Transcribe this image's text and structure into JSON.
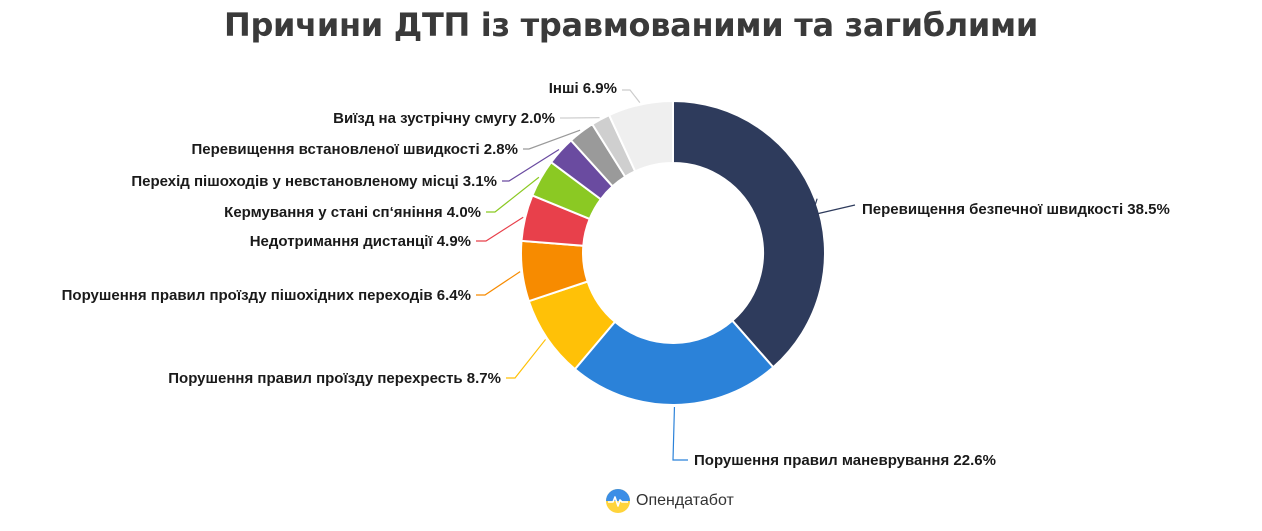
{
  "title": "Причини ДТП із травмованими та загиблими",
  "brand": {
    "name": "Опендатабот",
    "logo_icon": "opendatabot-logo-icon"
  },
  "chart_data": {
    "type": "pie",
    "style": "donut",
    "title": "Причини ДТП із травмованими та загиблими",
    "slices": [
      {
        "label": "Перевищення безпечної швидкості 38.5%",
        "value": 38.5,
        "color": "#2e3b5c"
      },
      {
        "label": "Порушення правил маневрування 22.6%",
        "value": 22.6,
        "color": "#2b82d9"
      },
      {
        "label": "Порушення правил проїзду перехресть 8.7%",
        "value": 8.7,
        "color": "#ffc107"
      },
      {
        "label": "Порушення правил проїзду пішохідних переходів 6.4%",
        "value": 6.4,
        "color": "#f78b00"
      },
      {
        "label": "Недотримання дистанції 4.9%",
        "value": 4.9,
        "color": "#e8404b"
      },
      {
        "label": "Кермування у стані сп‘яніння 4.0%",
        "value": 4.0,
        "color": "#8bc923"
      },
      {
        "label": "Перехід пішоходів у невстановленому місці 3.1%",
        "value": 3.1,
        "color": "#6a4ba0"
      },
      {
        "label": "Перевищення встановленої швидкості 2.8%",
        "value": 2.8,
        "color": "#9a9a9a"
      },
      {
        "label": "Виїзд на зустрічну смугу 2.0%",
        "value": 2.0,
        "color": "#cfcfcf"
      },
      {
        "label": "Інші 6.9%",
        "value": 6.9,
        "color": "#efefef"
      }
    ]
  }
}
